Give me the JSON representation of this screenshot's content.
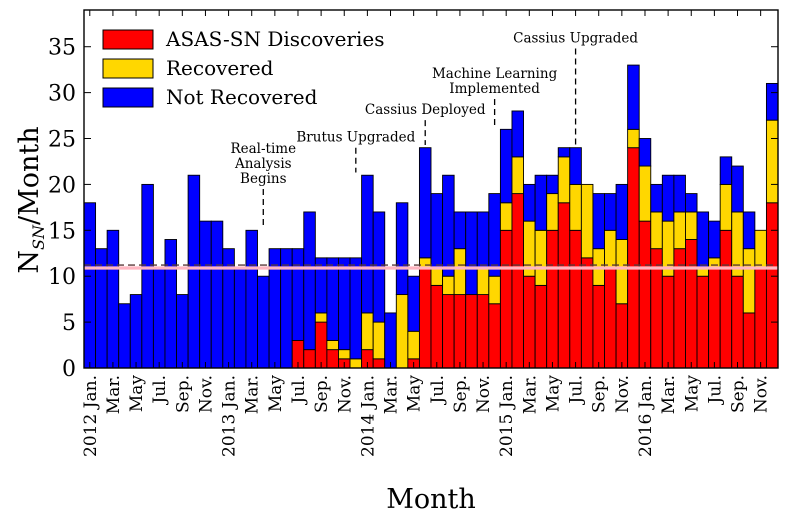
{
  "chart_data": {
    "type": "bar",
    "stacked": true,
    "ylabel": "N_SN/Month",
    "xlabel": "Month",
    "ylim": [
      0,
      39
    ],
    "yticks": [
      0,
      5,
      10,
      15,
      20,
      25,
      30,
      35
    ],
    "legend_placement": "top-left",
    "colors": {
      "asassn": "#ff0000",
      "recovered": "#ffd700",
      "not_recovered": "#0000ff",
      "mean_line": "#ffb6c1",
      "outline": "#000000"
    },
    "categories": [
      "2012-01",
      "2012-02",
      "2012-03",
      "2012-04",
      "2012-05",
      "2012-06",
      "2012-07",
      "2012-08",
      "2012-09",
      "2012-10",
      "2012-11",
      "2012-12",
      "2013-01",
      "2013-02",
      "2013-03",
      "2013-04",
      "2013-05",
      "2013-06",
      "2013-07",
      "2013-08",
      "2013-09",
      "2013-10",
      "2013-11",
      "2013-12",
      "2014-01",
      "2014-02",
      "2014-03",
      "2014-04",
      "2014-05",
      "2014-06",
      "2014-07",
      "2014-08",
      "2014-09",
      "2014-10",
      "2014-11",
      "2014-12",
      "2015-01",
      "2015-02",
      "2015-03",
      "2015-04",
      "2015-05",
      "2015-06",
      "2015-07",
      "2015-08",
      "2015-09",
      "2015-10",
      "2015-11",
      "2015-12",
      "2016-01",
      "2016-02",
      "2016-03",
      "2016-04",
      "2016-05",
      "2016-06",
      "2016-07",
      "2016-08",
      "2016-09",
      "2016-10",
      "2016-11",
      "2016-12"
    ],
    "xtick_labels": [
      {
        "index": 0,
        "text": "2012 Jan."
      },
      {
        "index": 2,
        "text": "Mar."
      },
      {
        "index": 4,
        "text": "May"
      },
      {
        "index": 6,
        "text": "Jul."
      },
      {
        "index": 8,
        "text": "Sep."
      },
      {
        "index": 10,
        "text": "Nov."
      },
      {
        "index": 12,
        "text": "2013 Jan."
      },
      {
        "index": 14,
        "text": "Mar."
      },
      {
        "index": 16,
        "text": "May"
      },
      {
        "index": 18,
        "text": "Jul."
      },
      {
        "index": 20,
        "text": "Sep."
      },
      {
        "index": 22,
        "text": "Nov."
      },
      {
        "index": 24,
        "text": "2014 Jan."
      },
      {
        "index": 26,
        "text": "Mar."
      },
      {
        "index": 28,
        "text": "May"
      },
      {
        "index": 30,
        "text": "Jul."
      },
      {
        "index": 32,
        "text": "Sep."
      },
      {
        "index": 34,
        "text": "Nov."
      },
      {
        "index": 36,
        "text": "2015 Jan."
      },
      {
        "index": 38,
        "text": "Mar."
      },
      {
        "index": 40,
        "text": "May"
      },
      {
        "index": 42,
        "text": "Jul."
      },
      {
        "index": 44,
        "text": "Sep."
      },
      {
        "index": 46,
        "text": "Nov."
      },
      {
        "index": 48,
        "text": "2016 Jan."
      },
      {
        "index": 50,
        "text": "Mar."
      },
      {
        "index": 52,
        "text": "May"
      },
      {
        "index": 54,
        "text": "Jul."
      },
      {
        "index": 56,
        "text": "Sep."
      },
      {
        "index": 58,
        "text": "Nov."
      }
    ],
    "series": [
      {
        "key": "asassn",
        "name": "ASAS-SN Discoveries",
        "values": [
          0,
          0,
          0,
          0,
          0,
          0,
          0,
          0,
          0,
          0,
          0,
          0,
          0,
          0,
          0,
          0,
          0,
          0,
          3,
          2,
          5,
          2,
          1,
          0,
          2,
          1,
          0,
          0,
          1,
          11,
          9,
          8,
          8,
          8,
          8,
          7,
          15,
          19,
          10,
          9,
          15,
          18,
          15,
          12,
          9,
          11,
          7,
          24,
          16,
          13,
          10,
          13,
          14,
          10,
          11,
          15,
          10,
          6,
          11,
          18
        ]
      },
      {
        "key": "recovered",
        "name": "Recovered",
        "values": [
          0,
          0,
          0,
          0,
          0,
          0,
          0,
          0,
          0,
          0,
          0,
          0,
          0,
          0,
          0,
          0,
          0,
          0,
          0,
          0,
          1,
          1,
          1,
          1,
          4,
          4,
          0,
          8,
          3,
          1,
          2,
          2,
          5,
          0,
          3,
          3,
          3,
          4,
          6,
          6,
          4,
          5,
          5,
          8,
          4,
          4,
          7,
          2,
          6,
          4,
          6,
          4,
          3,
          1,
          1,
          5,
          7,
          7,
          4,
          9
        ]
      },
      {
        "key": "not_recovered",
        "name": "Not Recovered",
        "values": [
          18,
          13,
          15,
          7,
          8,
          20,
          11,
          14,
          8,
          21,
          16,
          16,
          13,
          11,
          15,
          10,
          13,
          13,
          10,
          15,
          6,
          9,
          10,
          11,
          15,
          12,
          6,
          10,
          6,
          12,
          8,
          11,
          4,
          9,
          6,
          9,
          8,
          5,
          4,
          6,
          2,
          1,
          4,
          0,
          6,
          4,
          6,
          7,
          3,
          3,
          5,
          4,
          2,
          6,
          4,
          3,
          5,
          4,
          0,
          4
        ]
      }
    ],
    "mean_lines": [
      {
        "label": "mean",
        "value": 11.0,
        "style": "dashed-dark"
      },
      {
        "label": "mean-light",
        "value": 11.0,
        "style": "solid-light"
      }
    ],
    "annotations": [
      {
        "index": 15,
        "lines": [
          "Real-time",
          "Analysis",
          "Begins"
        ],
        "line_top": 19.5,
        "line_bottom": 15.5
      },
      {
        "index": 23,
        "lines": [
          "Brutus Upgraded"
        ],
        "line_top": 24.0,
        "line_bottom": 21.3
      },
      {
        "index": 29,
        "lines": [
          "Cassius Deployed"
        ],
        "line_top": 27.0,
        "line_bottom": 24.3
      },
      {
        "index": 35,
        "lines": [
          "Machine Learning",
          "Implemented"
        ],
        "line_top": 29.3,
        "line_bottom": 26.3
      },
      {
        "index": 42,
        "lines": [
          "Cassius Upgraded"
        ],
        "line_top": 34.8,
        "line_bottom": 24.3
      }
    ]
  }
}
